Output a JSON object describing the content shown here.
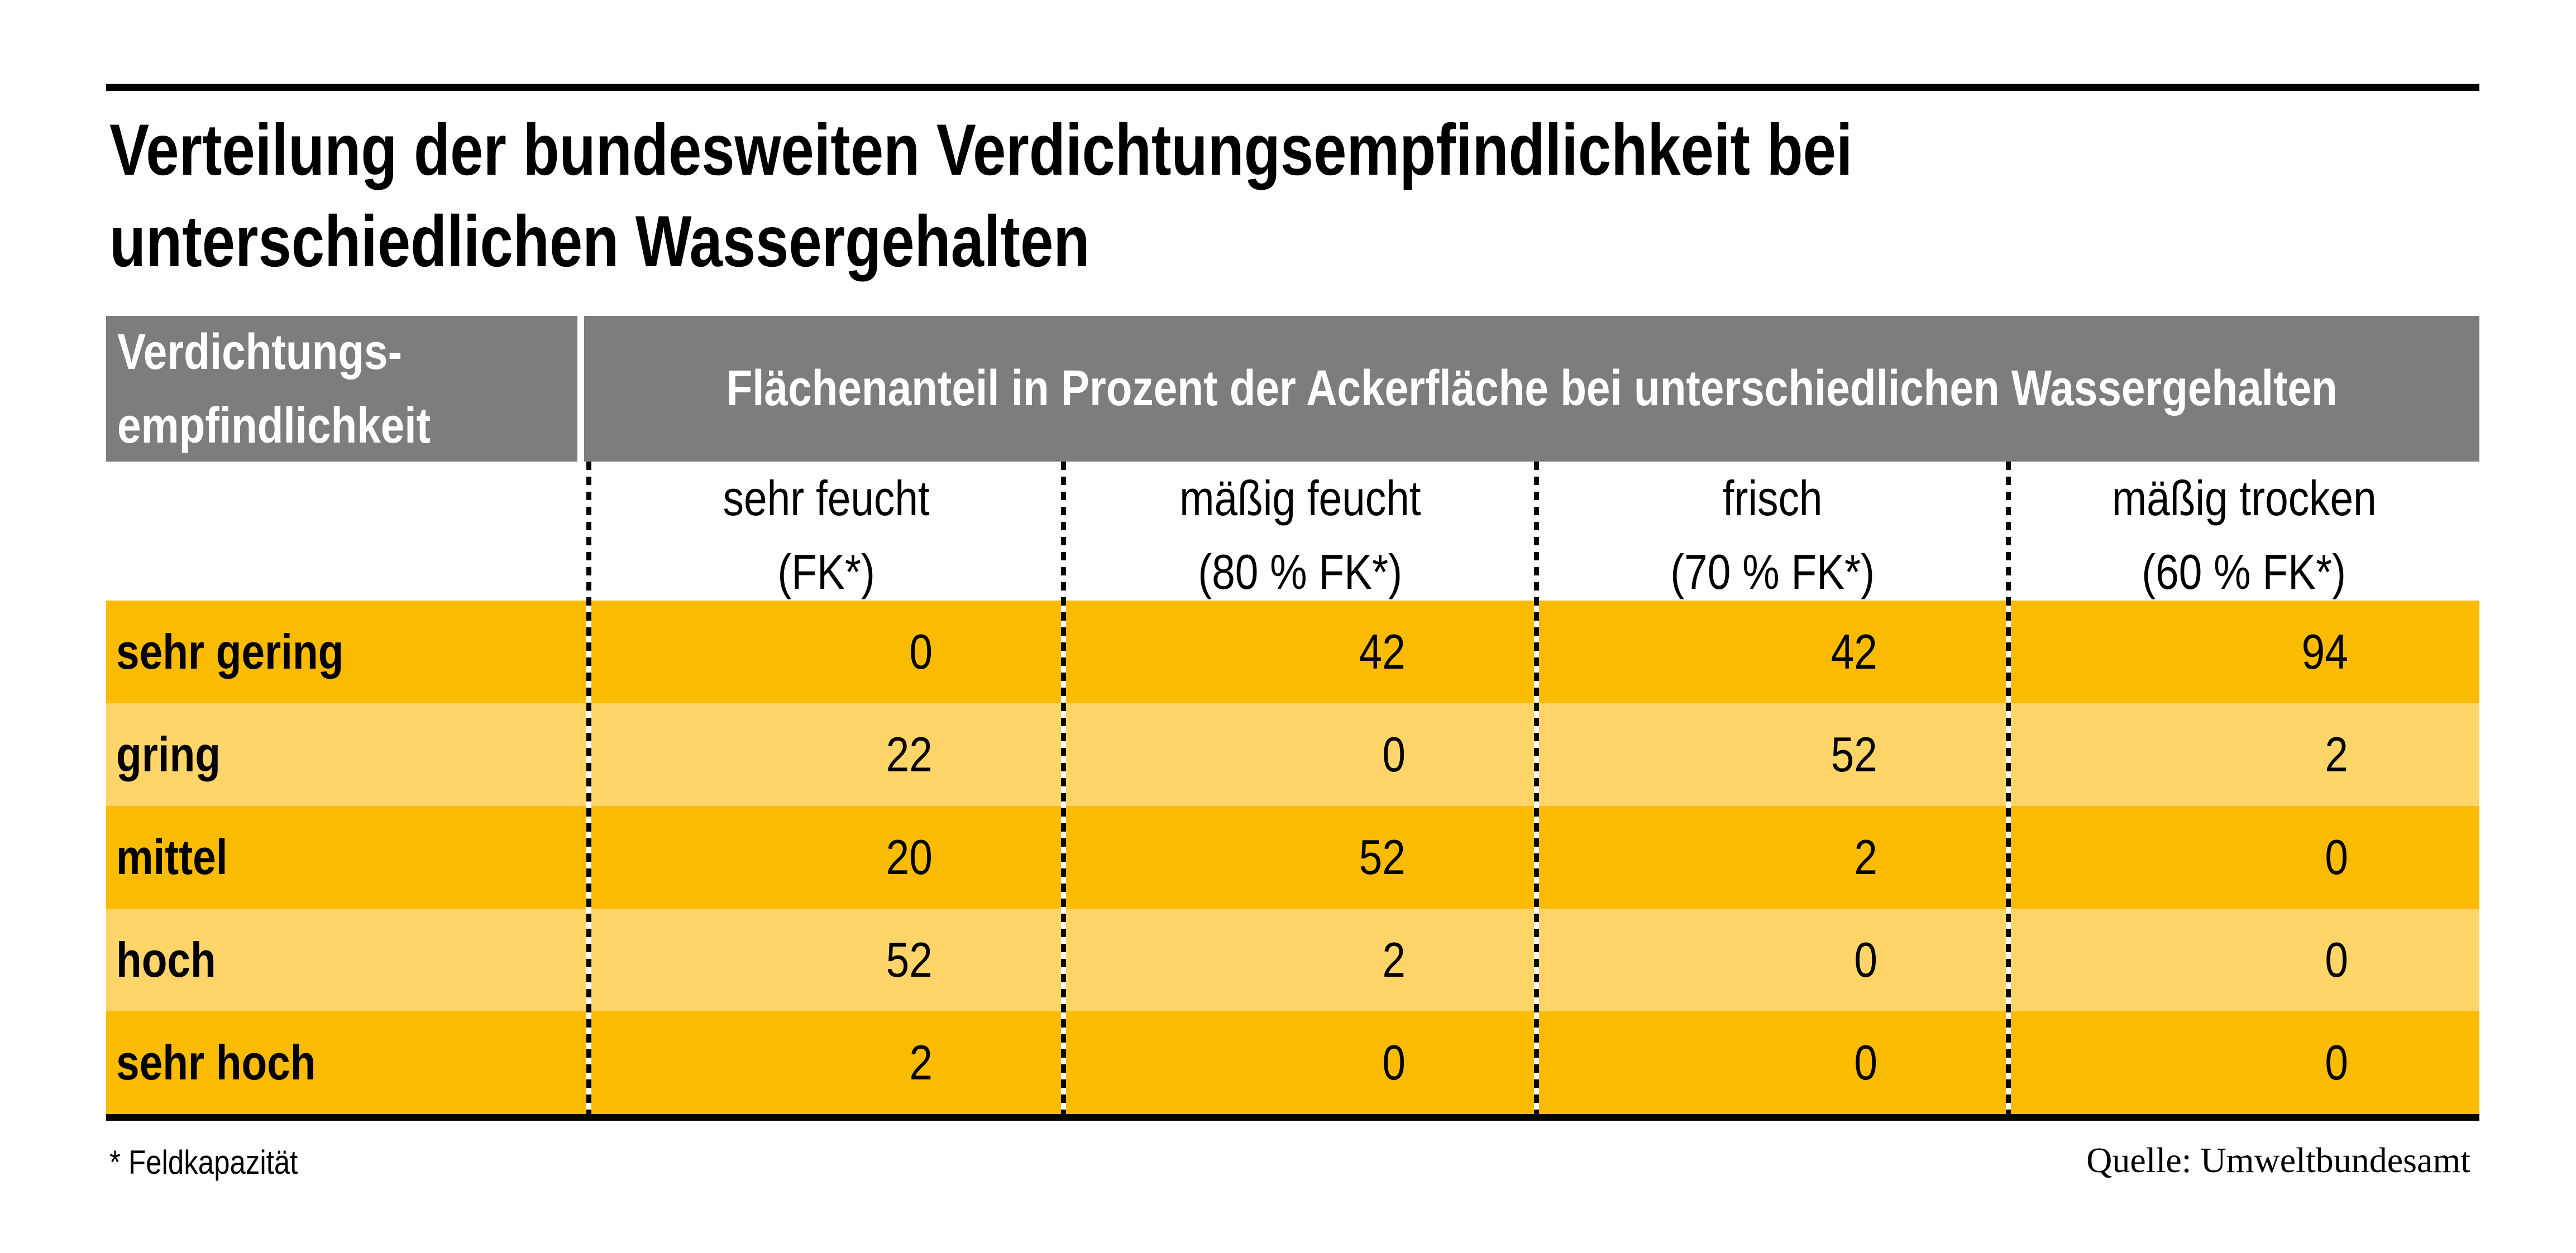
{
  "title": {
    "line1": "Verteilung der bundesweiten Verdichtungsempfindlichkeit bei",
    "line2": "unterschiedlichen Wassergehalten"
  },
  "table": {
    "corner": {
      "line1": "Verdichtungs-",
      "line2": "empfindlichkeit"
    },
    "span_header": "Flächenanteil in Prozent der Ackerfläche bei unterschiedlichen Wassergehalten",
    "columns": [
      {
        "line1": "sehr feucht",
        "line2": "(FK*)"
      },
      {
        "line1": "mäßig feucht",
        "line2": "(80 % FK*)"
      },
      {
        "line1": "frisch",
        "line2": "(70 % FK*)"
      },
      {
        "line1": "mäßig trocken",
        "line2": "(60 % FK*)"
      }
    ],
    "rows": [
      {
        "label": "sehr gering",
        "values": [
          "0",
          "42",
          "42",
          "94"
        ]
      },
      {
        "label": "gring",
        "values": [
          "22",
          "0",
          "52",
          "2"
        ]
      },
      {
        "label": "mittel",
        "values": [
          "20",
          "52",
          "2",
          "0"
        ]
      },
      {
        "label": "hoch",
        "values": [
          "52",
          "2",
          "0",
          "0"
        ]
      },
      {
        "label": "sehr hoch",
        "values": [
          "2",
          "0",
          "0",
          "0"
        ]
      }
    ]
  },
  "footer": {
    "footnote": "* Feldkapazität",
    "source": "Quelle: Umweltbundesamt"
  },
  "colors": {
    "row_dark": "#fabb00",
    "row_light": "#ffd569",
    "header_gray": "#7d7d7d",
    "rule_black": "#000000",
    "header_text": "#ffffff"
  },
  "chart_data": {
    "type": "table",
    "title": "Verteilung der bundesweiten Verdichtungsempfindlichkeit bei unterschiedlichen Wassergehalten",
    "row_header": "Verdichtungsempfindlichkeit",
    "column_group_header": "Flächenanteil in Prozent der Ackerfläche bei unterschiedlichen Wassergehalten",
    "categories": [
      "sehr feucht (FK*)",
      "mäßig feucht (80 % FK*)",
      "frisch (70 % FK*)",
      "mäßig trocken (60 % FK*)"
    ],
    "rows": [
      {
        "name": "sehr gering",
        "values": [
          0,
          42,
          42,
          94
        ]
      },
      {
        "name": "gring",
        "values": [
          22,
          0,
          52,
          2
        ]
      },
      {
        "name": "mittel",
        "values": [
          20,
          52,
          2,
          0
        ]
      },
      {
        "name": "hoch",
        "values": [
          52,
          2,
          0,
          0
        ]
      },
      {
        "name": "sehr hoch",
        "values": [
          2,
          0,
          0,
          0
        ]
      }
    ],
    "unit": "percent of arable land",
    "footnote": "* Feldkapazität",
    "source": "Quelle: Umweltbundesamt"
  }
}
